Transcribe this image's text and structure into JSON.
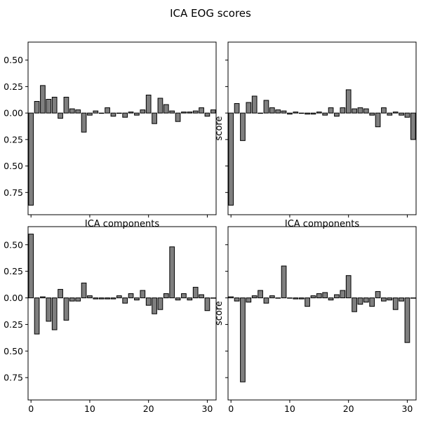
{
  "figure": {
    "title": "ICA EOG scores"
  },
  "chart_data": [
    {
      "type": "bar",
      "panel": "top-left",
      "title": "",
      "xlabel": "ICA components",
      "ylabel": "",
      "x": [
        0,
        1,
        2,
        3,
        4,
        5,
        6,
        7,
        8,
        9,
        10,
        11,
        12,
        13,
        14,
        15,
        16,
        17,
        18,
        19,
        20,
        21,
        22,
        23,
        24,
        25,
        26,
        27,
        28,
        29,
        30,
        31
      ],
      "values": [
        -0.87,
        0.11,
        0.26,
        0.13,
        0.15,
        -0.05,
        0.15,
        0.04,
        0.03,
        -0.18,
        -0.02,
        0.02,
        0.0,
        0.05,
        -0.03,
        0.0,
        -0.04,
        0.01,
        -0.02,
        0.03,
        0.17,
        -0.1,
        0.14,
        0.08,
        0.02,
        -0.08,
        0.01,
        0.01,
        0.02,
        0.05,
        -0.03,
        0.03
      ],
      "ylim": [
        -0.96,
        0.67
      ],
      "xlim": [
        -0.5,
        31.5
      ],
      "yticks": [
        0.5,
        0.25,
        0.0,
        -0.25,
        -0.5,
        -0.75
      ],
      "ytick_labels": [
        "0.50",
        "0.25",
        "0.00",
        "0.25",
        "0.50",
        "0.75"
      ],
      "xticks": [
        0,
        10,
        20,
        30
      ],
      "xtick_labels": [],
      "show_ytick_labels": true,
      "bar_color": "#7f7f7f",
      "edge_color": "#000000",
      "grid": false
    },
    {
      "type": "bar",
      "panel": "top-right",
      "title": "",
      "xlabel": "ICA components",
      "ylabel": "score",
      "x": [
        0,
        1,
        2,
        3,
        4,
        5,
        6,
        7,
        8,
        9,
        10,
        11,
        12,
        13,
        14,
        15,
        16,
        17,
        18,
        19,
        20,
        21,
        22,
        23,
        24,
        25,
        26,
        27,
        28,
        29,
        30,
        31
      ],
      "values": [
        -0.87,
        0.09,
        -0.26,
        0.1,
        0.16,
        0.0,
        0.12,
        0.05,
        0.03,
        0.02,
        -0.01,
        0.01,
        0.0,
        -0.01,
        -0.01,
        0.01,
        -0.02,
        0.05,
        -0.03,
        0.05,
        0.22,
        0.04,
        0.05,
        0.04,
        -0.02,
        -0.13,
        0.05,
        -0.02,
        0.01,
        -0.02,
        -0.04,
        -0.25
      ],
      "ylim": [
        -0.96,
        0.67
      ],
      "xlim": [
        -0.5,
        31.5
      ],
      "yticks": [
        0.5,
        0.25,
        0.0,
        -0.25,
        -0.5,
        -0.75
      ],
      "ytick_labels": [],
      "xticks": [
        0,
        10,
        20,
        30
      ],
      "xtick_labels": [],
      "show_ytick_labels": false,
      "bar_color": "#7f7f7f",
      "edge_color": "#000000",
      "grid": false
    },
    {
      "type": "bar",
      "panel": "bottom-left",
      "title": "",
      "xlabel": "",
      "ylabel": "",
      "x": [
        0,
        1,
        2,
        3,
        4,
        5,
        6,
        7,
        8,
        9,
        10,
        11,
        12,
        13,
        14,
        15,
        16,
        17,
        18,
        19,
        20,
        21,
        22,
        23,
        24,
        25,
        26,
        27,
        28,
        29,
        30,
        31
      ],
      "values": [
        0.6,
        -0.34,
        0.01,
        -0.22,
        -0.3,
        0.08,
        -0.21,
        -0.03,
        -0.03,
        0.14,
        0.02,
        -0.01,
        -0.01,
        -0.01,
        -0.01,
        0.02,
        -0.05,
        0.04,
        -0.02,
        0.07,
        -0.07,
        -0.15,
        -0.11,
        0.04,
        0.48,
        -0.02,
        0.04,
        -0.02,
        0.1,
        0.03,
        -0.12,
        0.0
      ],
      "ylim": [
        -0.96,
        0.67
      ],
      "xlim": [
        -0.5,
        31.5
      ],
      "yticks": [
        0.5,
        0.25,
        0.0,
        -0.25,
        -0.5,
        -0.75
      ],
      "ytick_labels": [
        "0.50",
        "0.25",
        "0.00",
        "0.25",
        "0.50",
        "0.75"
      ],
      "xticks": [
        0,
        10,
        20,
        30
      ],
      "xtick_labels": [
        "0",
        "10",
        "20",
        "30"
      ],
      "show_ytick_labels": true,
      "bar_color": "#7f7f7f",
      "edge_color": "#000000",
      "grid": false
    },
    {
      "type": "bar",
      "panel": "bottom-right",
      "title": "",
      "xlabel": "",
      "ylabel": "score",
      "x": [
        0,
        1,
        2,
        3,
        4,
        5,
        6,
        7,
        8,
        9,
        10,
        11,
        12,
        13,
        14,
        15,
        16,
        17,
        18,
        19,
        20,
        21,
        22,
        23,
        24,
        25,
        26,
        27,
        28,
        29,
        30,
        31
      ],
      "values": [
        0.01,
        -0.03,
        -0.79,
        -0.04,
        0.02,
        0.07,
        -0.05,
        0.02,
        0.0,
        0.3,
        0.0,
        -0.01,
        -0.01,
        -0.08,
        0.02,
        0.04,
        0.05,
        -0.02,
        0.03,
        0.07,
        0.21,
        -0.13,
        -0.06,
        -0.04,
        -0.08,
        0.06,
        -0.03,
        -0.02,
        -0.11,
        -0.03,
        -0.42,
        0.0
      ],
      "ylim": [
        -0.96,
        0.67
      ],
      "xlim": [
        -0.5,
        31.5
      ],
      "yticks": [
        0.5,
        0.25,
        0.0,
        -0.25,
        -0.5,
        -0.75
      ],
      "ytick_labels": [],
      "xticks": [
        0,
        10,
        20,
        30
      ],
      "xtick_labels": [
        "0",
        "10",
        "20",
        "30"
      ],
      "show_ytick_labels": false,
      "bar_color": "#7f7f7f",
      "edge_color": "#000000",
      "grid": false
    }
  ]
}
